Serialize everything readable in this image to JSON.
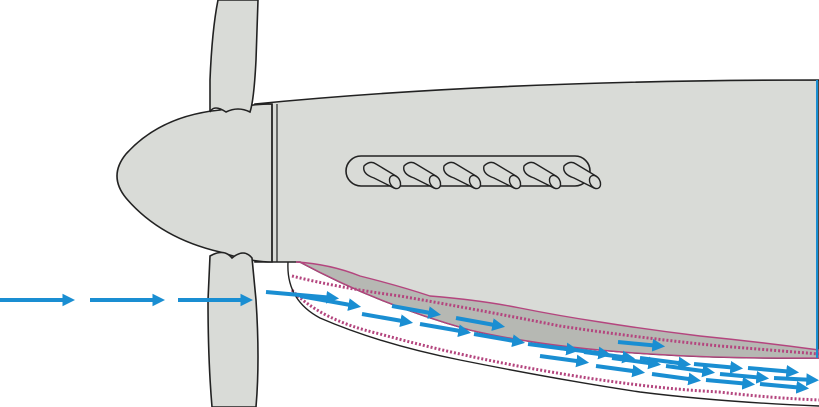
{
  "diagram": {
    "colors": {
      "background": "#ffffff",
      "fuselage_fill": "#d9dbd7",
      "outline": "#222222",
      "duct_inner_fill": "#b6b8b3",
      "duct_lining": "#b4457e",
      "airflow_arrow": "#1a8ed2"
    },
    "components": [
      {
        "id": "propeller-spinner",
        "icon": "spinner-nose-cone"
      },
      {
        "id": "propeller-blade-upper",
        "icon": "propeller-blade"
      },
      {
        "id": "propeller-blade-lower",
        "icon": "propeller-blade"
      },
      {
        "id": "engine-cowling",
        "icon": "cowling-panel"
      },
      {
        "id": "exhaust-stubs",
        "icon": "exhaust-stub",
        "count": 6
      },
      {
        "id": "radiator-air-intake-duct",
        "icon": "air-duct"
      }
    ],
    "airflow": {
      "direction": "left-to-right",
      "arrow_count": 26
    }
  }
}
